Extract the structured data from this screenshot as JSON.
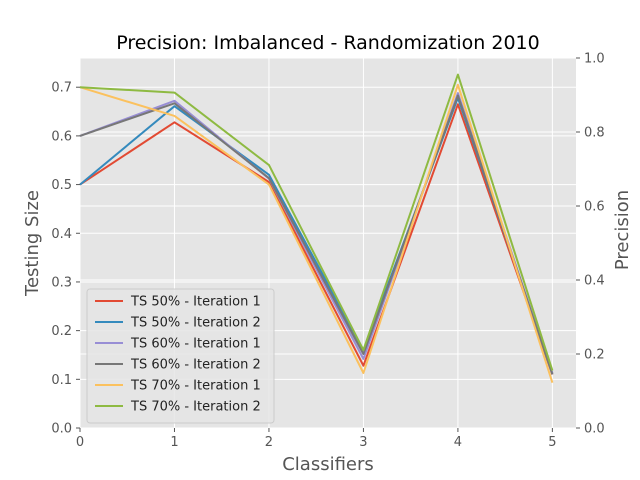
{
  "chart_data": {
    "type": "line",
    "title": "Precision: Imbalanced - Randomization 2010",
    "xlabel": "Classifiers",
    "ylabel": "Testing Size",
    "ylabel_right": "Precision",
    "x": [
      0,
      1,
      2,
      3,
      4,
      5
    ],
    "xlim": [
      0,
      5.25
    ],
    "ylim": [
      0.0,
      0.76
    ],
    "ylim_right": [
      0.0,
      1.0
    ],
    "x_ticks": [
      "0",
      "1",
      "2",
      "3",
      "4",
      "5"
    ],
    "y_ticks": [
      "0.0",
      "0.1",
      "0.2",
      "0.3",
      "0.4",
      "0.5",
      "0.6",
      "0.7"
    ],
    "y_ticks_right": [
      "0.0",
      "0.2",
      "0.4",
      "0.6",
      "0.8",
      "1.0"
    ],
    "grid": true,
    "legend_position": "lower-left",
    "series": [
      {
        "name": "TS 50% - Iteration 1",
        "color": "#E24A33",
        "values": [
          0.5,
          0.628,
          0.505,
          0.128,
          0.665,
          0.11
        ]
      },
      {
        "name": "TS 50% - Iteration 2",
        "color": "#348ABD",
        "values": [
          0.5,
          0.661,
          0.52,
          0.16,
          0.678,
          0.112
        ]
      },
      {
        "name": "TS 60% - Iteration 1",
        "color": "#988ED5",
        "values": [
          0.6,
          0.672,
          0.512,
          0.142,
          0.688,
          0.112
        ]
      },
      {
        "name": "TS 60% - Iteration 2",
        "color": "#777777",
        "values": [
          0.6,
          0.667,
          0.513,
          0.152,
          0.683,
          0.11
        ]
      },
      {
        "name": "TS 70% - Iteration 1",
        "color": "#FBC15E",
        "values": [
          0.7,
          0.641,
          0.5,
          0.113,
          0.705,
          0.093
        ]
      },
      {
        "name": "TS 70% - Iteration 2",
        "color": "#8EBA42",
        "values": [
          0.7,
          0.689,
          0.54,
          0.16,
          0.726,
          0.118
        ]
      }
    ]
  }
}
